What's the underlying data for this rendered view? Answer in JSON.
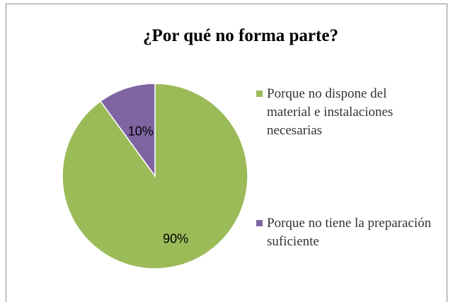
{
  "chart_data": {
    "type": "pie",
    "title": "¿Por qué no forma parte?",
    "categories": [
      "Porque no dispone del material e instalaciones necesarias",
      "Porque no tiene la preparación suficiente"
    ],
    "values": [
      90,
      10
    ],
    "value_labels": [
      "90%",
      "10%"
    ],
    "colors": [
      "#9bbb59",
      "#8064a2"
    ],
    "legend": "right"
  }
}
